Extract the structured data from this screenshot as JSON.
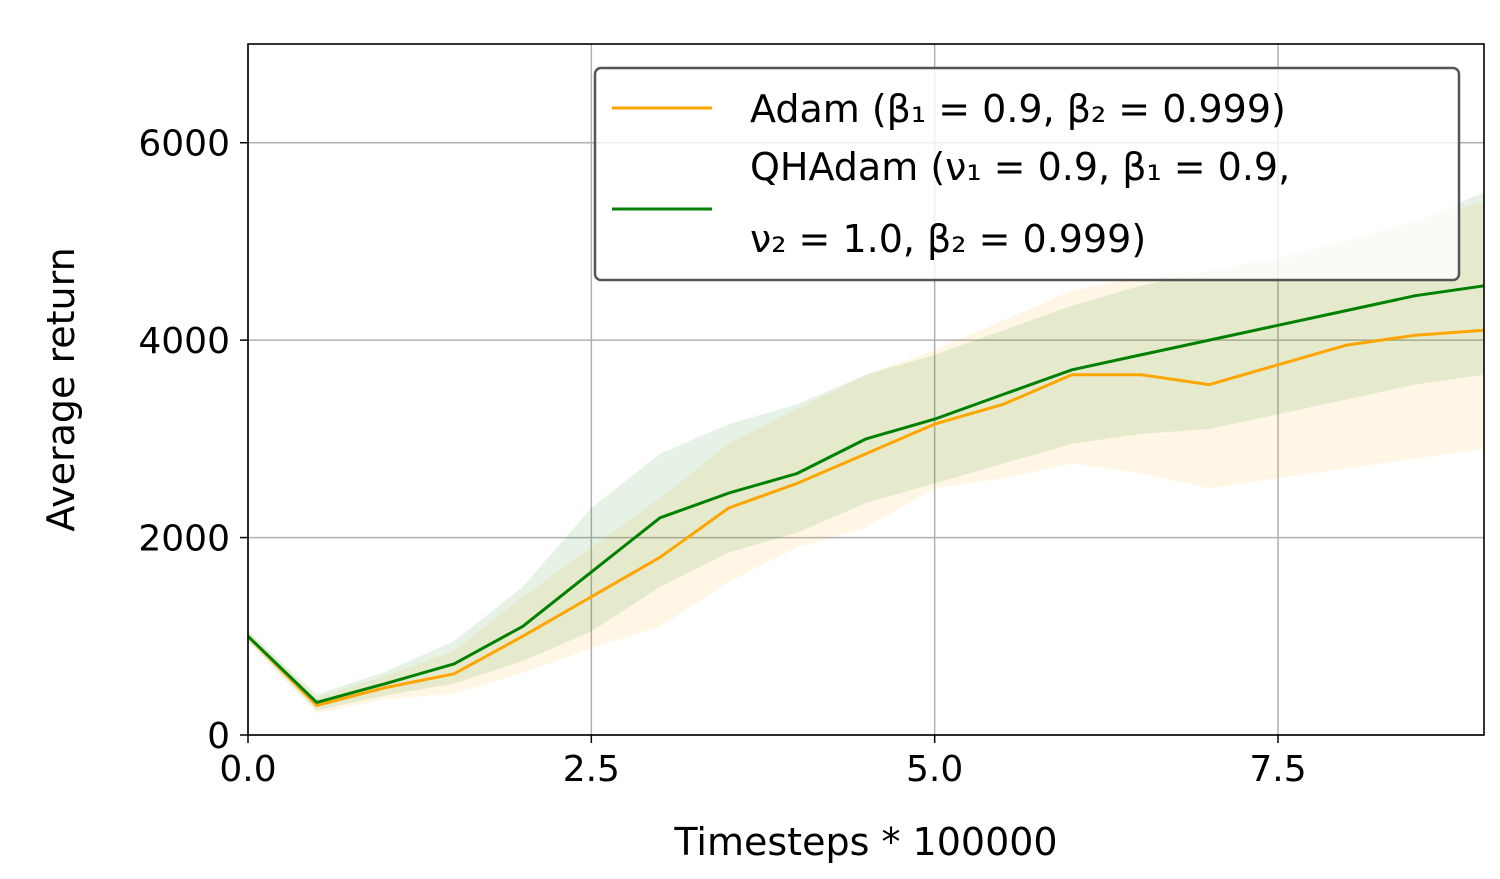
{
  "chart_data": {
    "type": "line",
    "title": "",
    "xlabel": "Timesteps * 100000",
    "ylabel": "Average return",
    "xlim": [
      0,
      9
    ],
    "ylim": [
      0,
      7000
    ],
    "x_ticks": [
      0.0,
      2.5,
      5.0,
      7.5
    ],
    "x_tick_labels": [
      "0.0",
      "2.5",
      "5.0",
      "7.5"
    ],
    "y_ticks": [
      0,
      2000,
      4000,
      6000
    ],
    "y_tick_labels": [
      "0",
      "2000",
      "4000",
      "6000"
    ],
    "grid": true,
    "legend_position": "top-right",
    "legend_lines": [
      [
        "Adam (β₁ = 0.9, β₂ = 0.999)"
      ],
      [
        "QHAdam (ν₁ = 0.9, β₁ = 0.9,",
        "ν₂ = 1.0, β₂ = 0.999)"
      ]
    ],
    "x": [
      0.0,
      0.5,
      1.0,
      1.5,
      2.0,
      2.5,
      3.0,
      3.5,
      4.0,
      4.5,
      5.0,
      5.5,
      6.0,
      6.5,
      7.0,
      7.5,
      8.0,
      8.5,
      9.0
    ],
    "series": [
      {
        "color": "#ffa500",
        "values": [
          1000,
          300,
          480,
          620,
          1000,
          1400,
          1800,
          2300,
          2550,
          2850,
          3150,
          3350,
          3650,
          3650,
          3550,
          3750,
          3950,
          4050,
          4100
        ],
        "band_low": [
          950,
          220,
          360,
          420,
          630,
          880,
          1100,
          1550,
          1900,
          2100,
          2500,
          2600,
          2750,
          2650,
          2500,
          2600,
          2700,
          2800,
          2900
        ],
        "band_high": [
          1050,
          380,
          600,
          850,
          1400,
          1900,
          2400,
          2950,
          3300,
          3650,
          3900,
          4200,
          4500,
          4650,
          4700,
          4800,
          5000,
          5200,
          5400
        ]
      },
      {
        "color": "#008000",
        "values": [
          1000,
          330,
          520,
          720,
          1100,
          1650,
          2200,
          2450,
          2650,
          3000,
          3200,
          3450,
          3700,
          3850,
          4000,
          4150,
          4300,
          4450,
          4550
        ],
        "band_low": [
          950,
          250,
          400,
          520,
          750,
          1050,
          1500,
          1850,
          2050,
          2350,
          2550,
          2750,
          2950,
          3050,
          3100,
          3250,
          3400,
          3550,
          3650
        ],
        "band_high": [
          1050,
          410,
          640,
          950,
          1500,
          2300,
          2850,
          3150,
          3350,
          3650,
          3850,
          4100,
          4350,
          4550,
          4700,
          4850,
          5000,
          5200,
          5500
        ]
      }
    ]
  }
}
